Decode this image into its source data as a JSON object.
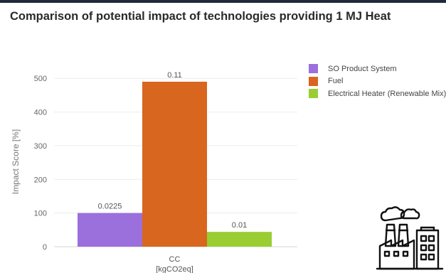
{
  "header": {
    "title": "Comparison of potential impact of technologies providing 1 MJ Heat"
  },
  "chart_data": {
    "type": "bar",
    "title": "Comparison of potential impact of technologies providing 1 MJ Heat",
    "categories": [
      "CC"
    ],
    "category_unit": "[kgCO2eq]",
    "ylabel": "Impact Score [%]",
    "xlabel": "",
    "ylim": [
      0,
      530
    ],
    "yticks": [
      0,
      100,
      200,
      300,
      400,
      500
    ],
    "grid": true,
    "legend_position": "top-right",
    "series": [
      {
        "name": "SO Product System",
        "values": [
          100
        ],
        "label": "0.0225",
        "color": "#9b6fdc"
      },
      {
        "name": "Fuel",
        "values": [
          490
        ],
        "label": "0.11",
        "color": "#d8661e"
      },
      {
        "name": "Electrical Heater (Renewable Mix)",
        "values": [
          44
        ],
        "label": "0.01",
        "color": "#9acd32"
      }
    ]
  },
  "decoration": {
    "icon": "factory-icon"
  }
}
